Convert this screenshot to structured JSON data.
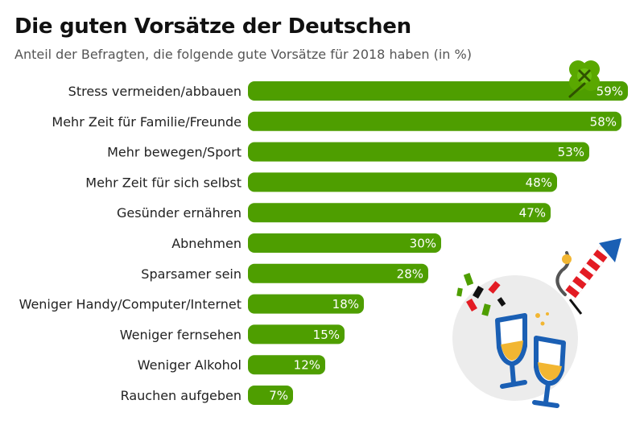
{
  "title": "Die guten Vorsätze der Deutschen",
  "subtitle": "Anteil der Befragten, die folgende gute Vorsätze für 2018 haben (in %)",
  "colors": {
    "bar": "#4e9e00",
    "label_text": "#ffffff",
    "text": "#222222"
  },
  "icons": [
    "clover-icon",
    "champagne-glasses-icon",
    "rocket-firework-icon",
    "confetti-icon"
  ],
  "chart_data": {
    "type": "bar",
    "orientation": "horizontal",
    "categories": [
      "Stress vermeiden/abbauen",
      "Mehr Zeit für Familie/Freunde",
      "Mehr bewegen/Sport",
      "Mehr Zeit für sich selbst",
      "Gesünder ernähren",
      "Abnehmen",
      "Sparsamer sein",
      "Weniger Handy/Computer/Internet",
      "Weniger fernsehen",
      "Weniger Alkohol",
      "Rauchen aufgeben"
    ],
    "values": [
      59,
      58,
      53,
      48,
      47,
      30,
      28,
      18,
      15,
      12,
      7
    ],
    "value_labels": [
      "59%",
      "58%",
      "53%",
      "48%",
      "47%",
      "30%",
      "28%",
      "18%",
      "15%",
      "12%",
      "7%"
    ],
    "title": "Die guten Vorsätze der Deutschen",
    "subtitle": "Anteil der Befragten, die folgende gute Vorsätze für 2018 haben (in %)",
    "xlabel": "",
    "ylabel": "",
    "xlim": [
      0,
      60
    ],
    "grid": false
  }
}
